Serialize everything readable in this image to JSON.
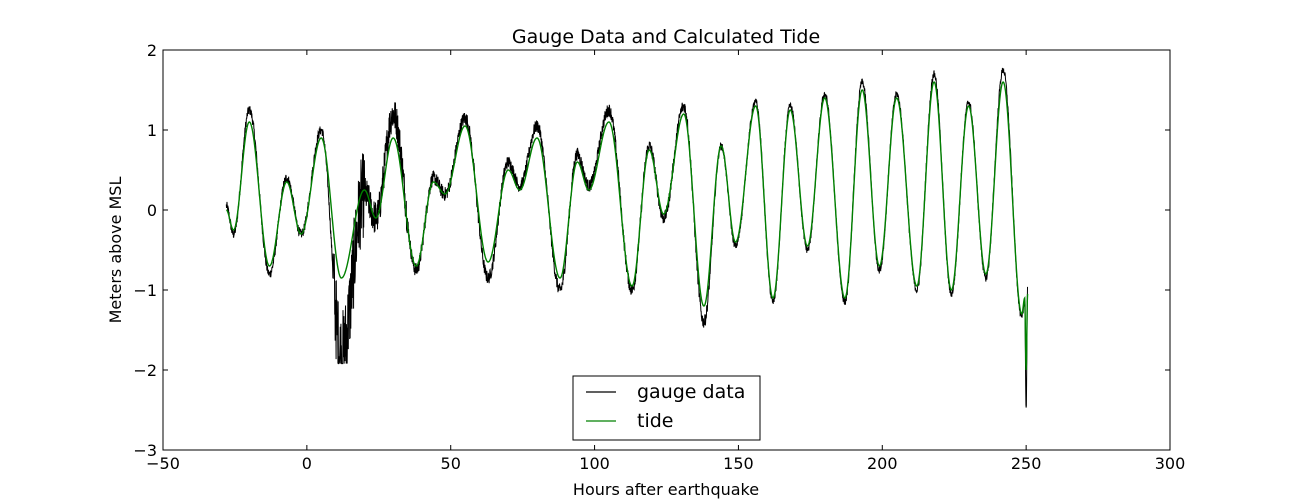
{
  "chart_data": {
    "type": "line",
    "title": "Gauge Data and Calculated Tide",
    "xlabel": "Hours after earthquake",
    "ylabel": "Meters above MSL",
    "xlim": [
      -50,
      300
    ],
    "ylim": [
      -3,
      2
    ],
    "xticks": [
      -50,
      0,
      50,
      100,
      150,
      200,
      250,
      300
    ],
    "yticks": [
      -3,
      -2,
      -1,
      0,
      1,
      2
    ],
    "xtick_labels": [
      "−50",
      "0",
      "50",
      "100",
      "150",
      "200",
      "250",
      "300"
    ],
    "ytick_labels": [
      "−3",
      "−2",
      "−1",
      "0",
      "1",
      "2"
    ],
    "legend_position": "bottom-center",
    "grid": false,
    "series": [
      {
        "name": "gauge data",
        "color": "#000000",
        "x_range": [
          -28,
          250.5
        ],
        "extrema": [
          [
            -28,
            0.05
          ],
          [
            -25.5,
            -0.3
          ],
          [
            -20,
            1.25
          ],
          [
            -13,
            -0.8
          ],
          [
            -7,
            0.4
          ],
          [
            -2,
            -0.3
          ],
          [
            5,
            1.0
          ],
          [
            12,
            -1.8
          ],
          [
            20,
            0.2
          ],
          [
            24,
            -0.1
          ],
          [
            30,
            1.2
          ],
          [
            38,
            -0.75
          ],
          [
            44,
            0.4
          ],
          [
            48,
            0.2
          ],
          [
            55,
            1.15
          ],
          [
            63,
            -0.85
          ],
          [
            70,
            0.6
          ],
          [
            74,
            0.3
          ],
          [
            80,
            1.05
          ],
          [
            88,
            -1.0
          ],
          [
            94,
            0.7
          ],
          [
            98,
            0.3
          ],
          [
            105,
            1.25
          ],
          [
            113,
            -1.0
          ],
          [
            119,
            0.8
          ],
          [
            124,
            -0.1
          ],
          [
            131,
            1.3
          ],
          [
            138,
            -1.4
          ],
          [
            144,
            0.8
          ],
          [
            149,
            -0.45
          ],
          [
            156,
            1.35
          ],
          [
            162,
            -1.15
          ],
          [
            168,
            1.3
          ],
          [
            174,
            -0.5
          ],
          [
            180,
            1.45
          ],
          [
            187,
            -1.15
          ],
          [
            193,
            1.6
          ],
          [
            199,
            -0.75
          ],
          [
            205,
            1.45
          ],
          [
            212,
            -1.0
          ],
          [
            218,
            1.7
          ],
          [
            224,
            -1.05
          ],
          [
            230,
            1.35
          ],
          [
            236,
            -0.85
          ],
          [
            242,
            1.75
          ],
          [
            248.5,
            -1.35
          ],
          [
            249.5,
            -1.15
          ],
          [
            250,
            -2.5
          ],
          [
            250.5,
            -1.0
          ]
        ]
      },
      {
        "name": "tide",
        "color": "#008000",
        "x_range": [
          -28,
          250.5
        ],
        "extrema": [
          [
            -28,
            0.0
          ],
          [
            -25.5,
            -0.25
          ],
          [
            -20,
            1.1
          ],
          [
            -13,
            -0.7
          ],
          [
            -7,
            0.35
          ],
          [
            -2,
            -0.3
          ],
          [
            5,
            0.9
          ],
          [
            12,
            -0.85
          ],
          [
            20,
            0.25
          ],
          [
            24,
            -0.1
          ],
          [
            30,
            0.9
          ],
          [
            38,
            -0.7
          ],
          [
            44,
            0.35
          ],
          [
            48,
            0.2
          ],
          [
            55,
            1.05
          ],
          [
            63,
            -0.65
          ],
          [
            70,
            0.5
          ],
          [
            74,
            0.25
          ],
          [
            80,
            0.9
          ],
          [
            88,
            -0.85
          ],
          [
            94,
            0.6
          ],
          [
            98,
            0.25
          ],
          [
            105,
            1.1
          ],
          [
            113,
            -0.95
          ],
          [
            119,
            0.75
          ],
          [
            124,
            -0.05
          ],
          [
            131,
            1.2
          ],
          [
            138,
            -1.2
          ],
          [
            144,
            0.8
          ],
          [
            149,
            -0.4
          ],
          [
            156,
            1.3
          ],
          [
            162,
            -1.1
          ],
          [
            168,
            1.25
          ],
          [
            174,
            -0.45
          ],
          [
            180,
            1.4
          ],
          [
            187,
            -1.1
          ],
          [
            193,
            1.5
          ],
          [
            199,
            -0.7
          ],
          [
            205,
            1.4
          ],
          [
            212,
            -0.95
          ],
          [
            218,
            1.6
          ],
          [
            224,
            -1.0
          ],
          [
            230,
            1.3
          ],
          [
            236,
            -0.8
          ],
          [
            242,
            1.6
          ],
          [
            248.5,
            -1.3
          ],
          [
            249.5,
            -1.1
          ],
          [
            250,
            -2.0
          ],
          [
            250.5,
            -1.05
          ]
        ]
      }
    ]
  }
}
